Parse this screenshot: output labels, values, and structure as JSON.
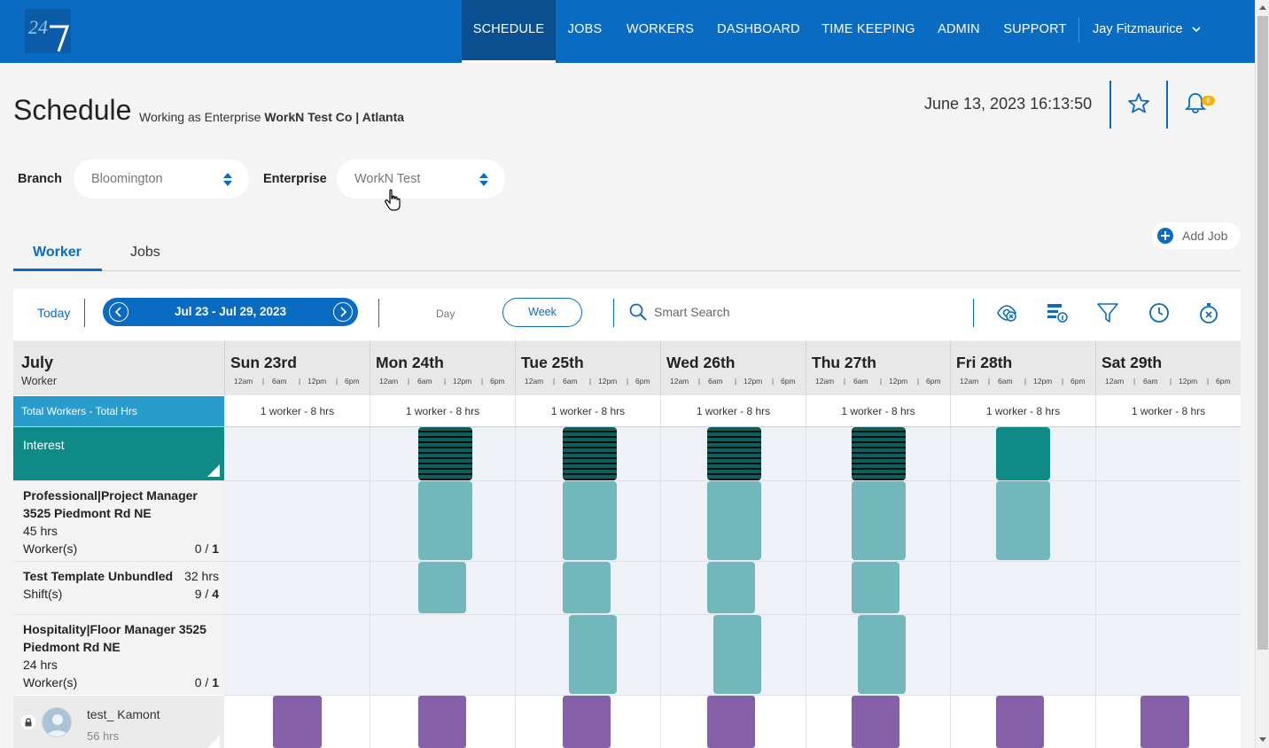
{
  "nav": {
    "logo_text": "24/7",
    "items": [
      "SCHEDULE",
      "JOBS",
      "WORKERS",
      "DASHBOARD",
      "TIME KEEPING",
      "ADMIN",
      "SUPPORT"
    ],
    "active": "SCHEDULE",
    "user": "Jay Fitzmaurice"
  },
  "header": {
    "title": "Schedule",
    "working_as_prefix": "Working as Enterprise",
    "working_as_company": "WorkN Test Co | Atlanta",
    "datetime": "June 13, 2023 16:13:50",
    "notification_count": "6"
  },
  "filters": {
    "branch_label": "Branch",
    "branch_value": "Bloomington",
    "enterprise_label": "Enterprise",
    "enterprise_value": "WorkN Test"
  },
  "tabs": {
    "worker": "Worker",
    "jobs": "Jobs",
    "active": "Worker"
  },
  "add_job": "Add Job",
  "toolbar": {
    "today": "Today",
    "range": "Jul 23 - Jul 29, 2023",
    "day": "Day",
    "week": "Week",
    "search_placeholder": "Smart Search",
    "active_view": "Week"
  },
  "grid": {
    "month": "July",
    "month_sub": "Worker",
    "hours": [
      "12am",
      "6am",
      "12pm",
      "6pm"
    ],
    "days": [
      "Sun 23rd",
      "Mon 24th",
      "Tue 25th",
      "Wed 26th",
      "Thu 27th",
      "Fri 28th",
      "Sat 29th"
    ],
    "totals_label": "Total Workers - Total Hrs",
    "totals": [
      "1 worker - 8 hrs",
      "1 worker - 8 hrs",
      "1 worker - 8 hrs",
      "1 worker - 8 hrs",
      "1 worker - 8 hrs",
      "1 worker - 8 hrs",
      "1 worker - 8 hrs"
    ],
    "interest_label": "Interest",
    "rows": [
      {
        "line1": "Professional|Project Manager",
        "line2": "3525 Piedmont Rd NE",
        "line3": "45 hrs",
        "line4_label": "Worker(s)",
        "line4_value_a": "0 / ",
        "line4_value_b": "1"
      },
      {
        "line1": "Test Template Unbundled",
        "hrs": "32 hrs",
        "line2_label": "Shift(s)",
        "line2_value_a": "9 / ",
        "line2_value_b": "4"
      },
      {
        "line1": "Hospitality|Floor Manager 3525",
        "line2": "Piedmont Rd NE",
        "line3": "24 hrs",
        "line4_label": "Worker(s)",
        "line4_value_a": "0 / ",
        "line4_value_b": "1"
      }
    ],
    "worker": {
      "name": "test_ Kamont",
      "hrs": "56 hrs"
    }
  },
  "colors": {
    "brand_blue": "#0a6bc2",
    "teal": "#0f8a87",
    "light_teal": "#72b7bb",
    "purple": "#8560a8",
    "totals_blue": "#2a9ccc"
  }
}
